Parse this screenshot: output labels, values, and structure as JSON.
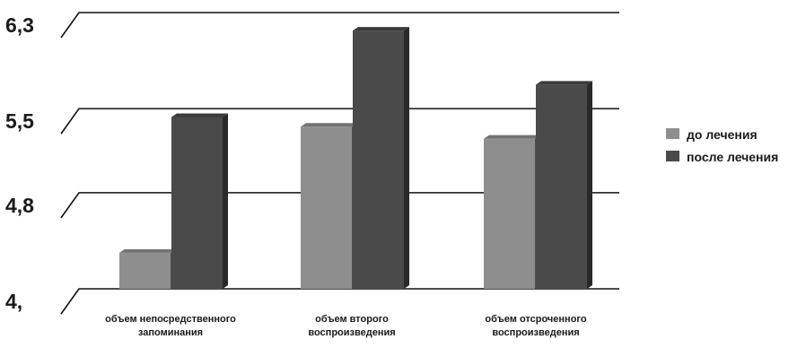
{
  "chart_data": {
    "type": "bar",
    "categories": [
      [
        "объем непосредственного",
        "запоминания"
      ],
      [
        "объем второго",
        "воспроизведения"
      ],
      [
        "объем отсроченного",
        "воспроизведения"
      ]
    ],
    "series": [
      {
        "name": "до лечения",
        "values": [
          4.3,
          5.35,
          5.25
        ],
        "color": "#8e8e8e"
      },
      {
        "name": "после лечения",
        "values": [
          5.43,
          6.15,
          5.7
        ],
        "color": "#4a4a4a"
      }
    ],
    "yticks": [
      {
        "value": 4.0,
        "label": "4,"
      },
      {
        "value": 4.8,
        "label": "4,8"
      },
      {
        "value": 5.5,
        "label": "5,5"
      },
      {
        "value": 6.3,
        "label": "6,3"
      }
    ],
    "ylim": [
      4.0,
      6.3
    ],
    "grid": true,
    "legend_position": "right"
  }
}
